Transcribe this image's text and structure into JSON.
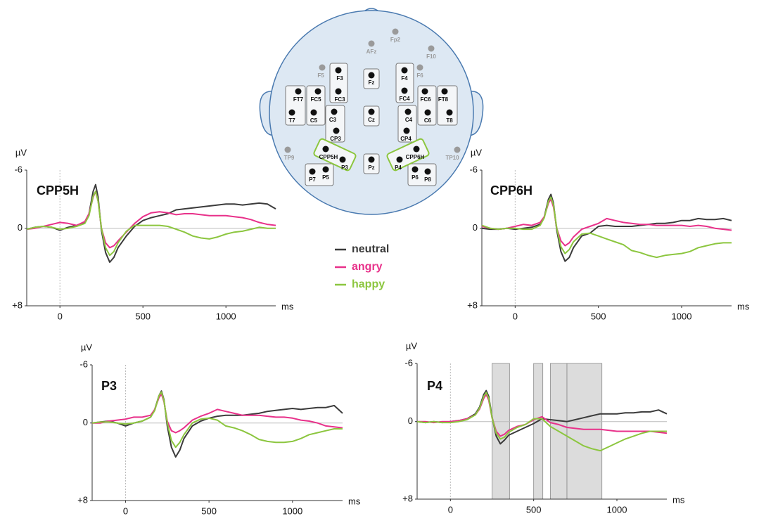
{
  "legend": [
    {
      "name": "neutral",
      "color": "#3b3b3b"
    },
    {
      "name": "angry",
      "color": "#e8318a"
    },
    {
      "name": "happy",
      "color": "#8cc63f"
    }
  ],
  "diagram": {
    "electrodes": [
      {
        "label": "Fp2",
        "color": "#9a9a9a"
      },
      {
        "label": "AFz",
        "color": "#9a9a9a"
      },
      {
        "label": "F10",
        "color": "#9a9a9a"
      },
      {
        "label": "F5",
        "color": "#9a9a9a"
      },
      {
        "label": "F6",
        "color": "#9a9a9a"
      },
      {
        "label": "TP9",
        "color": "#9a9a9a"
      },
      {
        "label": "TP10",
        "color": "#9a9a9a"
      },
      {
        "label": "F3",
        "color": "#111111"
      },
      {
        "label": "FC3",
        "color": "#111111"
      },
      {
        "label": "Fz",
        "color": "#111111"
      },
      {
        "label": "F4",
        "color": "#111111"
      },
      {
        "label": "FC4",
        "color": "#111111"
      },
      {
        "label": "FT7",
        "color": "#111111"
      },
      {
        "label": "FC5",
        "color": "#111111"
      },
      {
        "label": "T7",
        "color": "#111111"
      },
      {
        "label": "C5",
        "color": "#111111"
      },
      {
        "label": "C3",
        "color": "#111111"
      },
      {
        "label": "CP3",
        "color": "#111111"
      },
      {
        "label": "Cz",
        "color": "#111111"
      },
      {
        "label": "C4",
        "color": "#111111"
      },
      {
        "label": "CP4",
        "color": "#111111"
      },
      {
        "label": "FC6",
        "color": "#111111"
      },
      {
        "label": "FT8",
        "color": "#111111"
      },
      {
        "label": "C6",
        "color": "#111111"
      },
      {
        "label": "T8",
        "color": "#111111"
      },
      {
        "label": "CPP5H",
        "color": "#111111"
      },
      {
        "label": "P3",
        "color": "#111111"
      },
      {
        "label": "Pz",
        "color": "#111111"
      },
      {
        "label": "P4",
        "color": "#111111"
      },
      {
        "label": "CPP6H",
        "color": "#111111"
      },
      {
        "label": "P7",
        "color": "#111111"
      },
      {
        "label": "P5",
        "color": "#111111"
      },
      {
        "label": "P6",
        "color": "#111111"
      },
      {
        "label": "P8",
        "color": "#111111"
      }
    ]
  },
  "chart_data": [
    {
      "type": "line",
      "title": "CPP5H",
      "y_label": "µV",
      "x_label": "ms",
      "invert_y": true,
      "xlim": [
        -200,
        1300
      ],
      "ylim": [
        -6,
        8
      ],
      "xticks": [
        0,
        500,
        1000
      ],
      "yticks": [
        -6,
        0,
        {
          "value": 8,
          "label": "+8"
        }
      ],
      "x": [
        -200,
        -150,
        -100,
        -50,
        0,
        50,
        100,
        150,
        175,
        200,
        215,
        230,
        250,
        275,
        300,
        325,
        350,
        400,
        450,
        500,
        550,
        600,
        650,
        700,
        750,
        800,
        850,
        900,
        950,
        1000,
        1050,
        1100,
        1150,
        1200,
        1250,
        1300
      ],
      "series": [
        {
          "values": [
            0.1,
            -0.1,
            -0.2,
            -0.1,
            0.2,
            -0.1,
            -0.3,
            -0.6,
            -1.5,
            -3.8,
            -4.5,
            -3.2,
            0.2,
            2.5,
            3.5,
            3.0,
            2.0,
            0.8,
            -0.2,
            -0.8,
            -1.1,
            -1.3,
            -1.5,
            -1.9,
            -2.0,
            -2.1,
            -2.2,
            -2.3,
            -2.4,
            -2.5,
            -2.5,
            -2.4,
            -2.5,
            -2.6,
            -2.5,
            -2.0
          ]
        },
        {
          "values": [
            0.1,
            0,
            -0.2,
            -0.4,
            -0.6,
            -0.5,
            -0.3,
            -0.7,
            -1.5,
            -3.2,
            -3.8,
            -2.8,
            0,
            1.5,
            2.0,
            1.8,
            1.3,
            0.4,
            -0.5,
            -1.2,
            -1.6,
            -1.7,
            -1.6,
            -1.4,
            -1.5,
            -1.5,
            -1.4,
            -1.3,
            -1.3,
            -1.3,
            -1.2,
            -1.1,
            -0.9,
            -0.6,
            -0.4,
            -0.3
          ]
        },
        {
          "values": [
            0.1,
            -0.1,
            -0.2,
            -0.1,
            0.1,
            0,
            -0.2,
            -0.5,
            -1.3,
            -3.3,
            -3.8,
            -2.8,
            0,
            2.0,
            2.8,
            2.4,
            1.5,
            0.3,
            -0.3,
            -0.3,
            -0.3,
            -0.3,
            -0.2,
            0.1,
            0.4,
            0.8,
            1.0,
            1.1,
            0.9,
            0.6,
            0.4,
            0.3,
            0.1,
            -0.1,
            0,
            0
          ]
        }
      ]
    },
    {
      "type": "line",
      "title": "CPP6H",
      "y_label": "µV",
      "x_label": "ms",
      "invert_y": true,
      "xlim": [
        -200,
        1300
      ],
      "ylim": [
        -6,
        8
      ],
      "xticks": [
        0,
        500,
        1000
      ],
      "yticks": [
        -6,
        0,
        {
          "value": 8,
          "label": "+8"
        }
      ],
      "x": [
        -200,
        -150,
        -100,
        -50,
        0,
        50,
        100,
        150,
        175,
        200,
        215,
        230,
        250,
        275,
        300,
        325,
        350,
        400,
        450,
        500,
        550,
        600,
        650,
        700,
        750,
        800,
        850,
        900,
        950,
        1000,
        1050,
        1100,
        1150,
        1200,
        1250,
        1300
      ],
      "series": [
        {
          "values": [
            0,
            0.1,
            0.1,
            0,
            0.1,
            0,
            -0.1,
            -0.4,
            -1.2,
            -3.0,
            -3.5,
            -2.6,
            0.2,
            2.4,
            3.4,
            3.0,
            2.0,
            0.8,
            0.5,
            -0.2,
            -0.3,
            -0.2,
            -0.2,
            -0.2,
            -0.3,
            -0.4,
            -0.5,
            -0.5,
            -0.6,
            -0.8,
            -0.8,
            -1.0,
            -0.9,
            -0.9,
            -1.0,
            -0.8
          ]
        },
        {
          "values": [
            -0.2,
            0,
            0.1,
            0,
            -0.2,
            -0.4,
            -0.3,
            -0.6,
            -1.2,
            -2.6,
            -3.0,
            -2.2,
            0,
            1.3,
            1.8,
            1.5,
            0.9,
            0.1,
            -0.2,
            -0.5,
            -1.0,
            -0.8,
            -0.6,
            -0.5,
            -0.4,
            -0.4,
            -0.3,
            -0.3,
            -0.3,
            -0.3,
            -0.2,
            -0.3,
            -0.2,
            0,
            0.1,
            0.2
          ]
        },
        {
          "values": [
            -0.3,
            0,
            0.1,
            0,
            0,
            0.1,
            0.1,
            -0.3,
            -1.1,
            -2.8,
            -3.2,
            -2.4,
            0,
            1.9,
            2.6,
            2.2,
            1.4,
            0.6,
            0.5,
            0.8,
            1.1,
            1.4,
            1.7,
            2.3,
            2.5,
            2.8,
            3.0,
            2.8,
            2.7,
            2.6,
            2.4,
            2.0,
            1.8,
            1.6,
            1.5,
            1.5
          ]
        }
      ]
    },
    {
      "type": "line",
      "title": "P3",
      "y_label": "µV",
      "x_label": "ms",
      "invert_y": true,
      "xlim": [
        -200,
        1300
      ],
      "ylim": [
        -6,
        8
      ],
      "xticks": [
        0,
        500,
        1000
      ],
      "yticks": [
        -6,
        0,
        {
          "value": 8,
          "label": "+8"
        }
      ],
      "x": [
        -200,
        -150,
        -100,
        -50,
        0,
        50,
        100,
        150,
        175,
        200,
        215,
        230,
        250,
        275,
        300,
        325,
        350,
        400,
        450,
        500,
        550,
        600,
        650,
        700,
        750,
        800,
        850,
        900,
        950,
        1000,
        1050,
        1100,
        1150,
        1200,
        1250,
        1300
      ],
      "series": [
        {
          "values": [
            0,
            -0.1,
            -0.2,
            0,
            0.3,
            0,
            -0.2,
            -0.6,
            -1.4,
            -2.8,
            -3.3,
            -2.4,
            0.3,
            2.5,
            3.5,
            2.8,
            1.6,
            0.3,
            -0.2,
            -0.5,
            -0.7,
            -0.8,
            -0.8,
            -0.8,
            -0.9,
            -1.0,
            -1.2,
            -1.3,
            -1.4,
            -1.5,
            -1.4,
            -1.5,
            -1.6,
            -1.6,
            -1.8,
            -1.0
          ]
        },
        {
          "values": [
            0,
            0,
            -0.2,
            -0.3,
            -0.4,
            -0.6,
            -0.6,
            -0.8,
            -1.4,
            -2.6,
            -3.0,
            -2.2,
            -0.2,
            0.8,
            1.0,
            0.8,
            0.5,
            -0.3,
            -0.7,
            -1.0,
            -1.4,
            -1.2,
            -1.0,
            -0.8,
            -0.8,
            -0.8,
            -0.7,
            -0.6,
            -0.6,
            -0.5,
            -0.3,
            -0.2,
            0,
            0.3,
            0.4,
            0.5
          ]
        },
        {
          "values": [
            0,
            -0.1,
            -0.1,
            0,
            0.1,
            0,
            -0.2,
            -0.6,
            -1.3,
            -2.8,
            -3.2,
            -2.3,
            0,
            1.8,
            2.5,
            2.0,
            1.2,
            0,
            -0.4,
            -0.5,
            -0.3,
            0.3,
            0.5,
            0.8,
            1.2,
            1.7,
            1.9,
            2.0,
            2.0,
            1.9,
            1.6,
            1.2,
            1.0,
            0.8,
            0.6,
            0.6
          ]
        }
      ]
    },
    {
      "type": "line",
      "title": "P4",
      "y_label": "µV",
      "x_label": "ms",
      "invert_y": true,
      "xlim": [
        -200,
        1300
      ],
      "ylim": [
        -6,
        8
      ],
      "xticks": [
        0,
        500,
        1000
      ],
      "yticks": [
        -6,
        0,
        {
          "value": 8,
          "label": "+8"
        }
      ],
      "shaded_intervals": [
        [
          250,
          355
        ],
        [
          500,
          555
        ],
        [
          600,
          700
        ],
        [
          700,
          910
        ]
      ],
      "x": [
        -200,
        -150,
        -100,
        -50,
        0,
        50,
        100,
        150,
        175,
        200,
        215,
        230,
        250,
        275,
        300,
        325,
        350,
        400,
        450,
        500,
        550,
        600,
        650,
        700,
        750,
        800,
        850,
        900,
        950,
        1000,
        1050,
        1100,
        1150,
        1200,
        1250,
        1300
      ],
      "series": [
        {
          "values": [
            0,
            0.1,
            0,
            0.1,
            0,
            -0.1,
            -0.3,
            -0.8,
            -1.5,
            -2.8,
            -3.2,
            -2.6,
            -0.5,
            1.5,
            2.3,
            1.9,
            1.4,
            1.0,
            0.6,
            0.2,
            -0.3,
            -0.2,
            -0.1,
            0,
            -0.2,
            -0.4,
            -0.6,
            -0.8,
            -0.8,
            -0.8,
            -0.9,
            -0.9,
            -1.0,
            -1.0,
            -1.2,
            -0.8
          ]
        },
        {
          "values": [
            0,
            0,
            0.1,
            0,
            0,
            -0.1,
            -0.3,
            -0.7,
            -1.3,
            -2.4,
            -2.8,
            -2.2,
            -0.4,
            1.0,
            1.5,
            1.3,
            0.9,
            0.5,
            0.3,
            -0.2,
            -0.5,
            0.1,
            0.3,
            0.6,
            0.7,
            0.8,
            0.8,
            0.8,
            0.9,
            1.0,
            1.0,
            1.0,
            1.0,
            1.0,
            1.1,
            1.2
          ]
        },
        {
          "values": [
            0,
            0.1,
            0,
            0.1,
            0.1,
            0,
            -0.2,
            -0.7,
            -1.4,
            -2.6,
            -3.0,
            -2.4,
            -0.4,
            1.2,
            1.8,
            1.6,
            1.1,
            0.6,
            0.3,
            -0.3,
            -0.3,
            0.5,
            1.0,
            1.5,
            2.0,
            2.5,
            2.8,
            3.0,
            2.6,
            2.2,
            1.8,
            1.5,
            1.2,
            1.0,
            1.0,
            1.0
          ]
        }
      ]
    }
  ]
}
